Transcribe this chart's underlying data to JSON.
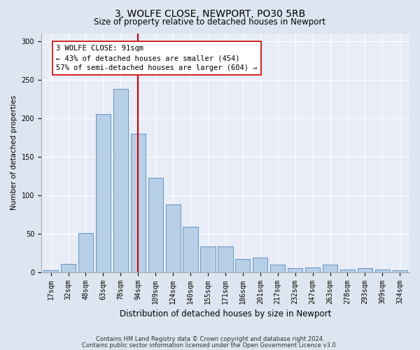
{
  "title": "3, WOLFE CLOSE, NEWPORT, PO30 5RB",
  "subtitle": "Size of property relative to detached houses in Newport",
  "xlabel": "Distribution of detached houses by size in Newport",
  "ylabel": "Number of detached properties",
  "categories": [
    "17sqm",
    "32sqm",
    "48sqm",
    "63sqm",
    "78sqm",
    "94sqm",
    "109sqm",
    "124sqm",
    "140sqm",
    "155sqm",
    "171sqm",
    "186sqm",
    "201sqm",
    "217sqm",
    "232sqm",
    "247sqm",
    "263sqm",
    "278sqm",
    "293sqm",
    "309sqm",
    "324sqm"
  ],
  "values": [
    2,
    11,
    51,
    205,
    238,
    180,
    122,
    88,
    59,
    33,
    33,
    17,
    19,
    10,
    5,
    6,
    10,
    3,
    5,
    3,
    2
  ],
  "bar_color": "#b8cfe8",
  "bar_edge_color": "#5588bb",
  "vline_color": "#cc0000",
  "vline_x": 5.5,
  "annotation_text": "3 WOLFE CLOSE: 91sqm\n← 43% of detached houses are smaller (454)\n57% of semi-detached houses are larger (604) →",
  "annotation_box_facecolor": "#ffffff",
  "annotation_box_edgecolor": "#cc0000",
  "ylim": [
    0,
    310
  ],
  "yticks": [
    0,
    50,
    100,
    150,
    200,
    250,
    300
  ],
  "footnote1": "Contains HM Land Registry data © Crown copyright and database right 2024.",
  "footnote2": "Contains public sector information licensed under the Open Government Licence v3.0.",
  "fig_facecolor": "#dde5f0",
  "axes_facecolor": "#e8edf7",
  "title_fontsize": 10,
  "subtitle_fontsize": 8.5,
  "xlabel_fontsize": 8.5,
  "ylabel_fontsize": 7.5,
  "tick_fontsize": 7,
  "annotation_fontsize": 7.5,
  "footnote_fontsize": 6
}
